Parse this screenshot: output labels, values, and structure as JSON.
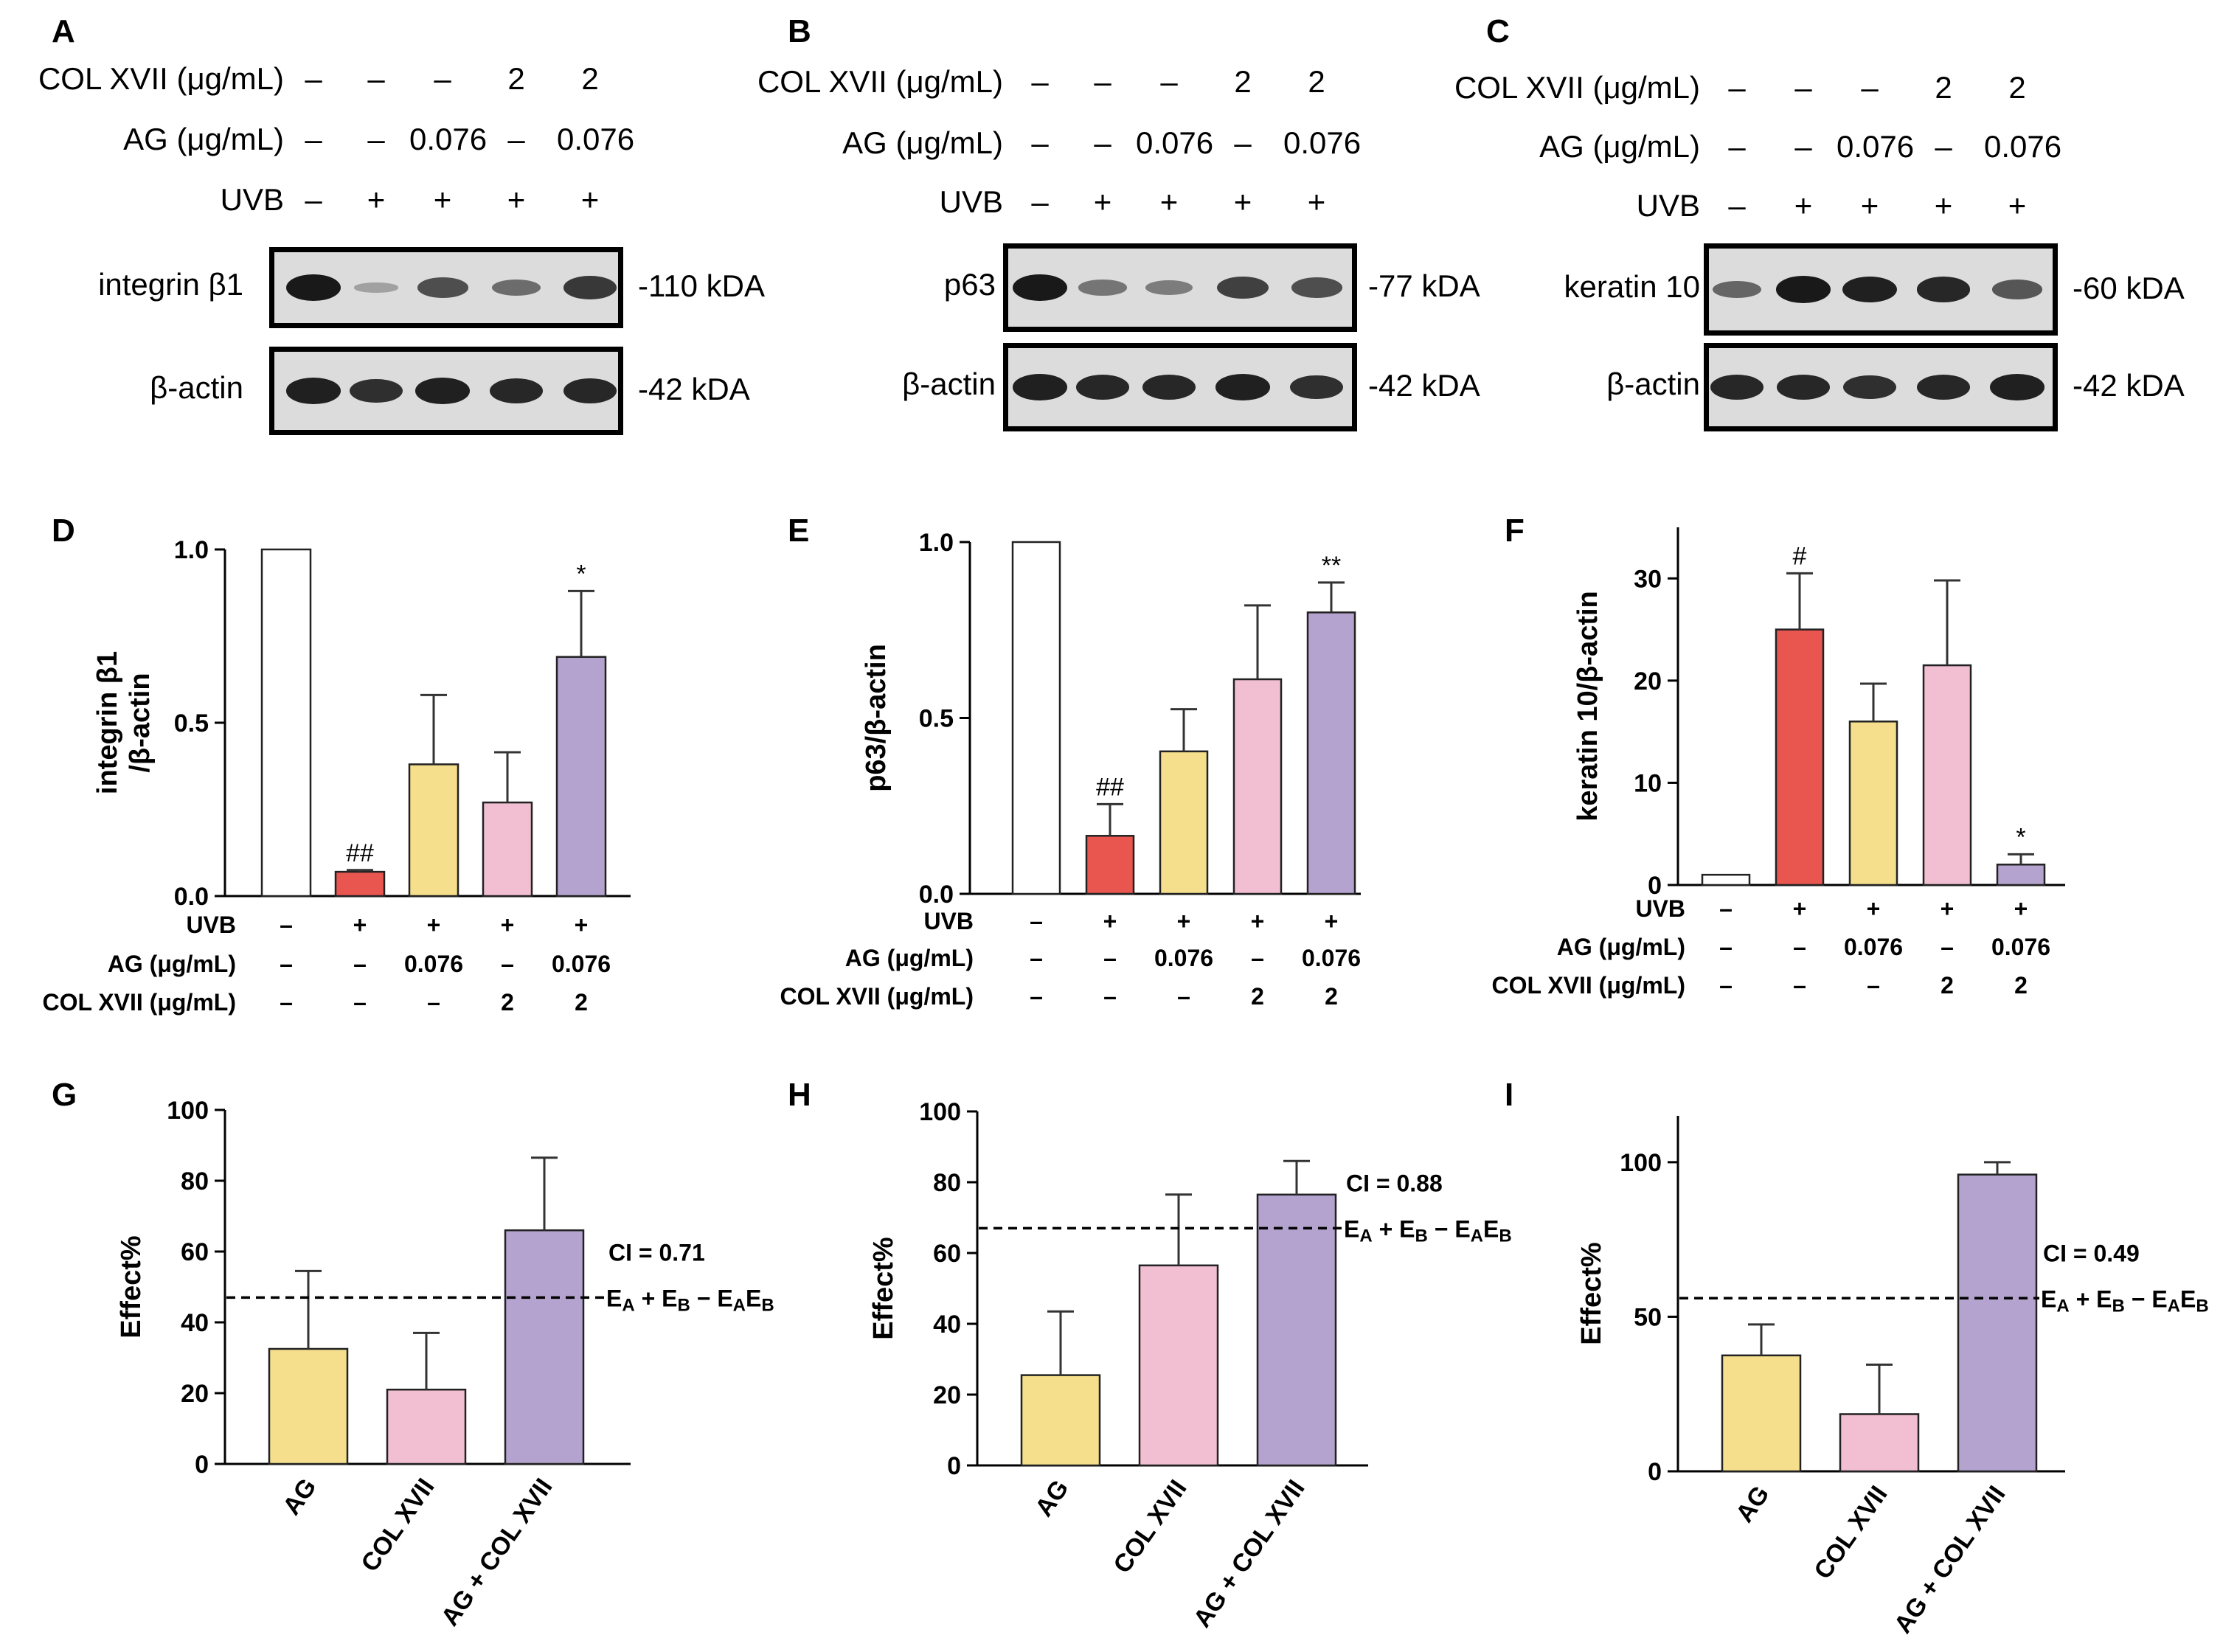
{
  "panel_labels": [
    "A",
    "B",
    "C",
    "D",
    "E",
    "F",
    "G",
    "H",
    "I"
  ],
  "blots": [
    {
      "id": "A",
      "conditions": [
        {
          "label": "COL XVII (μg/mL)",
          "values": [
            "–",
            "–",
            "–",
            "2",
            "2"
          ]
        },
        {
          "label": "AG (μg/mL)",
          "values": [
            "–",
            "–",
            "0.076",
            "–",
            "0.076"
          ]
        },
        {
          "label": "UVB",
          "values": [
            "–",
            "+",
            "+",
            "+",
            "+"
          ]
        }
      ],
      "proteins": [
        {
          "label": "integrin β1",
          "kda": "-110 kDA",
          "intensity": [
            0.95,
            0.05,
            0.6,
            0.4,
            0.75
          ]
        },
        {
          "label": "β-actin",
          "kda": "-42 kDA",
          "intensity": [
            0.9,
            0.8,
            0.9,
            0.85,
            0.85
          ]
        }
      ]
    },
    {
      "id": "B",
      "conditions": [
        {
          "label": "COL XVII (μg/mL)",
          "values": [
            "–",
            "–",
            "–",
            "2",
            "2"
          ]
        },
        {
          "label": "AG (μg/mL)",
          "values": [
            "–",
            "–",
            "0.076",
            "–",
            "0.076"
          ]
        },
        {
          "label": "UVB",
          "values": [
            "–",
            "+",
            "+",
            "+",
            "+"
          ]
        }
      ],
      "proteins": [
        {
          "label": "p63",
          "kda": "-77 kDA",
          "intensity": [
            0.95,
            0.35,
            0.3,
            0.7,
            0.6
          ]
        },
        {
          "label": "β-actin",
          "kda": "-42 kDA",
          "intensity": [
            0.9,
            0.85,
            0.85,
            0.9,
            0.8
          ]
        }
      ]
    },
    {
      "id": "C",
      "conditions": [
        {
          "label": "COL XVII (μg/mL)",
          "values": [
            "–",
            "–",
            "–",
            "2",
            "2"
          ]
        },
        {
          "label": "AG (μg/mL)",
          "values": [
            "–",
            "–",
            "0.076",
            "–",
            "0.076"
          ]
        },
        {
          "label": "UVB",
          "values": [
            "–",
            "+",
            "+",
            "+",
            "+"
          ]
        }
      ],
      "proteins": [
        {
          "label": "keratin 10",
          "kda": "-60 kDA",
          "intensity": [
            0.45,
            0.95,
            0.9,
            0.85,
            0.55
          ]
        },
        {
          "label": "β-actin",
          "kda": "-42 kDA",
          "intensity": [
            0.85,
            0.85,
            0.8,
            0.85,
            0.9
          ]
        }
      ]
    }
  ],
  "chart_data": [
    {
      "id": "D",
      "type": "bar",
      "ylabel": [
        "integrin β1",
        "/β-actin"
      ],
      "ylim": [
        0,
        1.0
      ],
      "yticks": [
        {
          "v": 0,
          "t": "0.0"
        },
        {
          "v": 0.5,
          "t": "0.5"
        },
        {
          "v": 1.0,
          "t": "1.0"
        }
      ],
      "values": [
        1.0,
        0.07,
        0.38,
        0.27,
        0.69
      ],
      "errors": [
        0,
        0.005,
        0.2,
        0.145,
        0.19
      ],
      "colors": [
        "#ffffff",
        "#e8564f",
        "#f5df8c",
        "#f2bfd2",
        "#b4a3cf"
      ],
      "annotations": [
        "",
        "##",
        "",
        "",
        "*"
      ],
      "table_rows": [
        {
          "label": "UVB",
          "values": [
            "–",
            "+",
            "+",
            "+",
            "+"
          ]
        },
        {
          "label": "AG (μg/mL)",
          "values": [
            "–",
            "–",
            "0.076",
            "–",
            "0.076"
          ]
        },
        {
          "label": "COL XVII (μg/mL)",
          "values": [
            "–",
            "–",
            "–",
            "2",
            "2"
          ]
        }
      ]
    },
    {
      "id": "E",
      "type": "bar",
      "ylabel": [
        "p63/β-actin"
      ],
      "ylim": [
        0,
        1.0
      ],
      "yticks": [
        {
          "v": 0,
          "t": "0.0"
        },
        {
          "v": 0.5,
          "t": "0.5"
        },
        {
          "v": 1.0,
          "t": "1.0"
        }
      ],
      "values": [
        1.0,
        0.165,
        0.405,
        0.61,
        0.8
      ],
      "errors": [
        0,
        0.09,
        0.12,
        0.21,
        0.085
      ],
      "colors": [
        "#ffffff",
        "#e8564f",
        "#f5df8c",
        "#f2bfd2",
        "#b4a3cf"
      ],
      "annotations": [
        "",
        "##",
        "",
        "",
        "**"
      ],
      "table_rows": [
        {
          "label": "UVB",
          "values": [
            "–",
            "+",
            "+",
            "+",
            "+"
          ]
        },
        {
          "label": "AG (μg/mL)",
          "values": [
            "–",
            "–",
            "0.076",
            "–",
            "0.076"
          ]
        },
        {
          "label": "COL XVII (μg/mL)",
          "values": [
            "–",
            "–",
            "–",
            "2",
            "2"
          ]
        }
      ]
    },
    {
      "id": "F",
      "type": "bar",
      "ylabel": [
        "keratin 10/β-actin"
      ],
      "ylim": [
        0,
        35
      ],
      "yticks": [
        {
          "v": 0,
          "t": "0"
        },
        {
          "v": 10,
          "t": "10"
        },
        {
          "v": 20,
          "t": "20"
        },
        {
          "v": 30,
          "t": "30"
        }
      ],
      "values": [
        1.0,
        25.0,
        16.0,
        21.5,
        2.0
      ],
      "errors": [
        0,
        5.5,
        3.7,
        8.3,
        1.0
      ],
      "colors": [
        "#ffffff",
        "#e8564f",
        "#f5df8c",
        "#f2bfd2",
        "#b4a3cf"
      ],
      "annotations": [
        "",
        "#",
        "",
        "",
        "*"
      ],
      "table_rows": [
        {
          "label": "UVB",
          "values": [
            "–",
            "+",
            "+",
            "+",
            "+"
          ]
        },
        {
          "label": "AG (μg/mL)",
          "values": [
            "–",
            "–",
            "0.076",
            "–",
            "0.076"
          ]
        },
        {
          "label": "COL XVII (μg/mL)",
          "values": [
            "–",
            "–",
            "–",
            "2",
            "2"
          ]
        }
      ]
    },
    {
      "id": "G",
      "type": "bar",
      "ylabel": [
        "Effect%"
      ],
      "ylim": [
        0,
        100
      ],
      "yticks": [
        {
          "v": 0,
          "t": "0"
        },
        {
          "v": 20,
          "t": "20"
        },
        {
          "v": 40,
          "t": "40"
        },
        {
          "v": 60,
          "t": "60"
        },
        {
          "v": 80,
          "t": "80"
        },
        {
          "v": 100,
          "t": "100"
        }
      ],
      "categories": [
        "AG",
        "COL XVII",
        "AG + COL XVII"
      ],
      "values": [
        32.5,
        21,
        66
      ],
      "errors": [
        22,
        16,
        20.5
      ],
      "colors": [
        "#f5df8c",
        "#f2bfd2",
        "#b4a3cf"
      ],
      "dashed_line": 47,
      "ci_text": "CI = 0.71"
    },
    {
      "id": "H",
      "type": "bar",
      "ylabel": [
        "Effect%"
      ],
      "ylim": [
        0,
        100
      ],
      "yticks": [
        {
          "v": 0,
          "t": "0"
        },
        {
          "v": 20,
          "t": "20"
        },
        {
          "v": 40,
          "t": "40"
        },
        {
          "v": 60,
          "t": "60"
        },
        {
          "v": 80,
          "t": "80"
        },
        {
          "v": 100,
          "t": "100"
        }
      ],
      "categories": [
        "AG",
        "COL XVII",
        "AG + COL XVII"
      ],
      "values": [
        25.5,
        56.5,
        76.5
      ],
      "errors": [
        18,
        20,
        9.5
      ],
      "colors": [
        "#f5df8c",
        "#f2bfd2",
        "#b4a3cf"
      ],
      "dashed_line": 67,
      "ci_text": "CI = 0.88"
    },
    {
      "id": "I",
      "type": "bar",
      "ylabel": [
        "Effect%"
      ],
      "ylim": [
        0,
        115
      ],
      "yticks": [
        {
          "v": 0,
          "t": "0"
        },
        {
          "v": 50,
          "t": "50"
        },
        {
          "v": 100,
          "t": "100"
        }
      ],
      "categories": [
        "AG",
        "COL XVII",
        "AG + COL XVII"
      ],
      "values": [
        37.5,
        18.5,
        96
      ],
      "errors": [
        10,
        16,
        4
      ],
      "colors": [
        "#f5df8c",
        "#f2bfd2",
        "#b4a3cf"
      ],
      "dashed_line": 56,
      "ci_text": "CI = 0.49"
    }
  ]
}
